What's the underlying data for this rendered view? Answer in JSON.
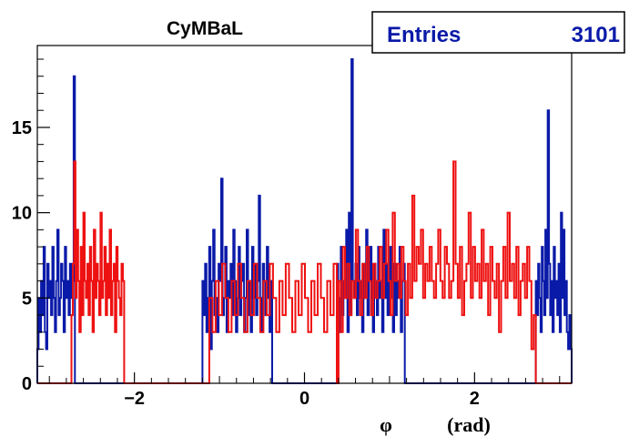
{
  "chart_data": {
    "type": "line",
    "title": "CyMBaL",
    "stats": {
      "label": "Entries",
      "value": "3101"
    },
    "xlabel": {
      "symbol": "φ",
      "unit": "(rad)"
    },
    "xlim": [
      -3.1416,
      3.1416
    ],
    "ylim": [
      0,
      19.8
    ],
    "x_ticks": [
      {
        "value": -2,
        "label": "−2"
      },
      {
        "value": 0,
        "label": "0"
      },
      {
        "value": 2,
        "label": "2"
      }
    ],
    "y_ticks": [
      {
        "value": 0,
        "label": "0"
      },
      {
        "value": 5,
        "label": "5"
      },
      {
        "value": 10,
        "label": "10"
      },
      {
        "value": 15,
        "label": "15"
      }
    ],
    "colors": {
      "blue": "#0a1aa8",
      "red": "#ee1111"
    },
    "series": [
      {
        "color": "#0a1aa8",
        "bins": 400,
        "segments": [
          {
            "range": [
              -3.1416,
              -2.7
            ],
            "values": [
              2,
              5,
              3,
              6,
              4,
              8,
              3,
              2,
              7,
              5,
              6,
              4,
              8,
              5,
              3,
              6,
              9,
              4,
              5,
              7,
              6,
              3,
              8,
              5,
              6,
              4,
              7,
              5,
              6,
              18
            ]
          },
          {
            "range": [
              -1.2,
              -0.38
            ],
            "values": [
              6,
              4,
              7,
              3,
              5,
              8,
              2,
              6,
              9,
              4,
              5,
              3,
              7,
              6,
              12,
              4,
              5,
              8,
              3,
              6,
              5,
              7,
              4,
              9,
              6,
              3,
              5,
              8,
              4,
              6,
              7,
              3,
              5,
              9,
              4,
              6,
              3,
              8,
              5,
              7,
              4,
              6,
              11,
              5,
              3,
              7,
              6,
              4,
              8,
              5,
              3,
              6
            ]
          },
          {
            "range": [
              0.38,
              1.18
            ],
            "values": [
              7,
              5,
              3,
              8,
              4,
              6,
              5,
              9,
              3,
              10,
              4,
              19,
              6,
              5,
              7,
              4,
              8,
              5,
              6,
              3,
              7,
              5,
              9,
              4,
              6,
              8,
              5,
              3,
              7,
              6,
              4,
              8,
              5,
              6,
              3,
              9,
              5,
              7,
              4,
              6,
              8,
              5,
              3,
              7,
              4,
              6,
              5,
              8,
              3,
              6,
              7
            ]
          },
          {
            "range": [
              2.72,
              3.1416
            ],
            "values": [
              6,
              4,
              7,
              5,
              3,
              8,
              6,
              4,
              9,
              5,
              16,
              7,
              4,
              6,
              3,
              8,
              5,
              6,
              4,
              7,
              3,
              10,
              5,
              9,
              4,
              6,
              3,
              2,
              4,
              2
            ]
          }
        ]
      },
      {
        "color": "#ee1111",
        "bins": 400,
        "segments": [
          {
            "range": [
              -2.74,
              -2.12
            ],
            "values": [
              4,
              7,
              13,
              5,
              9,
              6,
              3,
              8,
              4,
              10,
              6,
              5,
              7,
              4,
              8,
              6,
              3,
              9,
              5,
              7,
              6,
              4,
              10,
              5,
              6,
              8,
              4,
              7,
              5,
              9,
              4,
              6,
              7,
              3,
              8,
              6,
              5,
              4,
              7,
              6
            ]
          },
          {
            "range": [
              -1.12,
              0.38
            ],
            "values": [
              5,
              3,
              6,
              4,
              7,
              5,
              3,
              6,
              4,
              7,
              5,
              3,
              6,
              4,
              7,
              5,
              3,
              6,
              4,
              7,
              5,
              3,
              6,
              4,
              7,
              5,
              3,
              6,
              4,
              7,
              5,
              3,
              6,
              4,
              7,
              5,
              3,
              6,
              4,
              7
            ]
          },
          {
            "range": [
              0.4,
              2.72
            ],
            "values": [
              6,
              3,
              8,
              5,
              7,
              4,
              6,
              5,
              9,
              6,
              4,
              7,
              5,
              8,
              6,
              4,
              7,
              5,
              6,
              8,
              5,
              7,
              9,
              6,
              4,
              10,
              6,
              7,
              5,
              8,
              6,
              4,
              7,
              5,
              11,
              6,
              8,
              7,
              9,
              5,
              7,
              6,
              8,
              6,
              5,
              7,
              9,
              6,
              5,
              8,
              7,
              5,
              6,
              13,
              7,
              5,
              8,
              4,
              6,
              7,
              10,
              5,
              8,
              6,
              7,
              5,
              9,
              6,
              7,
              4,
              8,
              6,
              5,
              7,
              3,
              6,
              8,
              5,
              10,
              6,
              7,
              5,
              8,
              4,
              6,
              7,
              5,
              8,
              6,
              2,
              4
            ]
          }
        ]
      }
    ]
  }
}
